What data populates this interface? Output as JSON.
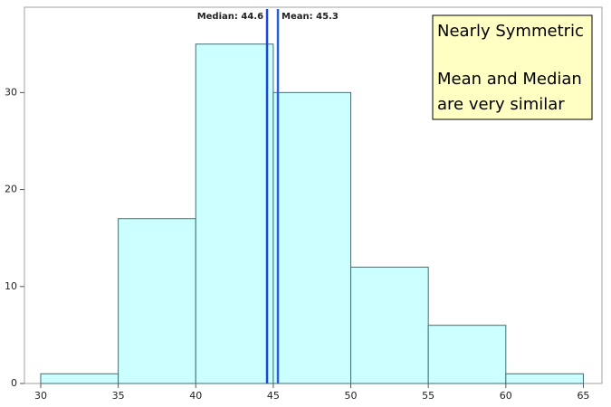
{
  "chart_data": {
    "type": "histogram",
    "bins": [
      30,
      35,
      40,
      45,
      50,
      55,
      60,
      65
    ],
    "values": [
      1,
      17,
      35,
      30,
      12,
      6,
      1
    ],
    "color": "#ccffff",
    "edge_color": "#3f6f72",
    "xlim": [
      28.95,
      66.2
    ],
    "xticks": [
      30,
      35,
      40,
      45,
      50,
      55,
      60,
      65
    ],
    "ylim": [
      0,
      38.8
    ],
    "yticks": [
      0,
      10,
      20,
      30
    ],
    "reference_lines": [
      {
        "label": "Median: 44.6",
        "value": 44.6,
        "color": "#1a48d0"
      },
      {
        "label": "Mean: 45.3",
        "value": 45.3,
        "color": "#2a5fd8"
      }
    ],
    "annotation": {
      "lines": [
        "Nearly Symmetric",
        "Mean and Median",
        "are very similar"
      ],
      "color": "#ffffc4"
    }
  }
}
